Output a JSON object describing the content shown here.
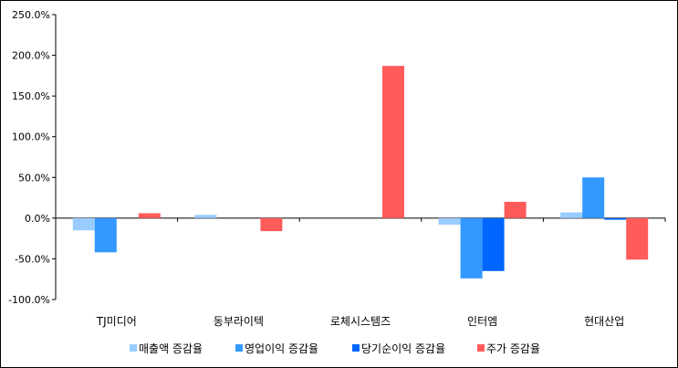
{
  "chart_data": {
    "type": "bar",
    "categories": [
      "TJ미디어",
      "동부라이텍",
      "로체시스템즈",
      "인터엠",
      "현대산업"
    ],
    "series": [
      {
        "name": "매출액 증감율",
        "color": "#99CCFF",
        "values": [
          -15,
          4,
          0,
          -8,
          7
        ]
      },
      {
        "name": "영업이익 증감율",
        "color": "#3399FF",
        "values": [
          -42,
          0,
          0,
          -74,
          50
        ]
      },
      {
        "name": "당기순이익 증감율",
        "color": "#0066FF",
        "values": [
          0,
          0,
          0,
          -65,
          -2
        ]
      },
      {
        "name": "주가 증감율",
        "color": "#FF5B5B",
        "values": [
          6,
          -16,
          187,
          20,
          -51
        ]
      }
    ],
    "y_ticks": [
      "250.0%",
      "200.0%",
      "150.0%",
      "100.0%",
      "50.0%",
      "0.0%",
      "-50.0%",
      "-100.0%"
    ],
    "ylim": [
      -100,
      250
    ],
    "grid": false,
    "legend": "bottom"
  }
}
